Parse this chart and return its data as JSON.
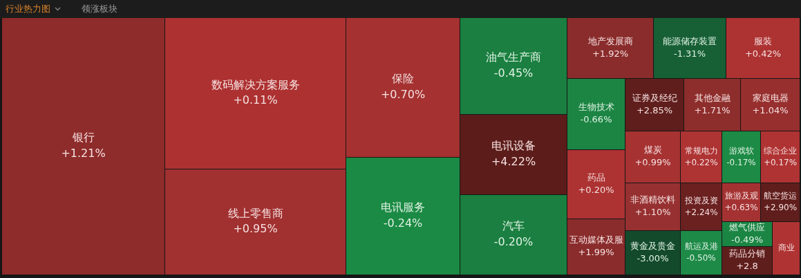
{
  "chart_data": {
    "type": "other",
    "title": "行业热力图",
    "subtitle": "领涨板块",
    "categories": [
      "银行",
      "数码解决方案服务",
      "线上零售商",
      "保险",
      "电讯服务",
      "油气生产商",
      "电讯设备",
      "汽车",
      "地产发展商",
      "能源储存装置",
      "服装",
      "生物技术",
      "证券及经纪",
      "其他金融",
      "家庭电器",
      "药品",
      "互动媒体及服",
      "煤炭",
      "常规电力",
      "游戏软",
      "综合企业",
      "非酒精饮料",
      "投资及资",
      "旅游及观",
      "航空货运",
      "黄金及贵金",
      "航运及港",
      "燃气供应",
      "药品分销",
      "商业"
    ],
    "values": [
      1.21,
      0.11,
      0.95,
      0.7,
      -0.24,
      -0.45,
      4.22,
      -0.2,
      1.92,
      -1.31,
      0.42,
      -0.66,
      2.85,
      1.71,
      1.04,
      0.2,
      1.99,
      0.99,
      0.22,
      -0.17,
      0.17,
      1.1,
      2.24,
      0.63,
      2.9,
      -3.0,
      -0.5,
      -0.49,
      null,
      null
    ],
    "value_labels": [
      "+1.21%",
      "+0.11%",
      "+0.95%",
      "+0.70%",
      "-0.24%",
      "-0.45%",
      "+4.22%",
      "-0.20%",
      "+1.92%",
      "-1.31%",
      "+0.42%",
      "-0.66%",
      "+2.85%",
      "+1.71%",
      "+1.04%",
      "+0.20%",
      "+1.99%",
      "+0.99%",
      "+0.22%",
      "-0.17%",
      "+0.17%",
      "+1.10%",
      "+2.24%",
      "+0.63%",
      "+2.90%",
      "-3.00%",
      "-0.50%",
      "-0.49%",
      "+2.8",
      null
    ],
    "colors": [
      "#8e2b2b",
      "#ad3131",
      "#a13030",
      "#a53131",
      "#1b8a44",
      "#1a7f40",
      "#5c1d1a",
      "#1a7f40",
      "#8a2c2c",
      "#175f35",
      "#ad3232",
      "#1c8544",
      "#5f1e1c",
      "#8e2e2c",
      "#962f2e",
      "#ad3232",
      "#8a2c2c",
      "#a63232",
      "#ae3333",
      "#1d8a45",
      "#b03333",
      "#973030",
      "#6a2120",
      "#a43232",
      "#5f1e1c",
      "#144a2c",
      "#1e8a48",
      "#1b8544",
      "#5e1e1c",
      "#b03333"
    ]
  }
}
